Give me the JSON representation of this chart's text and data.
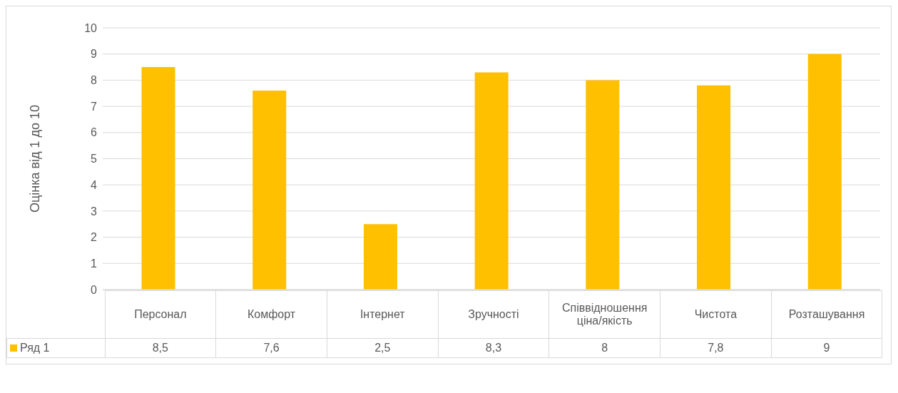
{
  "chart_data": {
    "type": "bar",
    "ylabel": "Оцінка від 1 до 10",
    "categories": [
      "Персонал",
      "Комфорт",
      "Інтернет",
      "Зручності",
      "Співвідношення ціна/якість",
      "Чистота",
      "Розташування"
    ],
    "series": [
      {
        "name": "Ряд 1",
        "color": "#ffc000",
        "values": [
          8.5,
          7.6,
          2.5,
          8.3,
          8,
          7.8,
          9
        ],
        "value_labels": [
          "8,5",
          "7,6",
          "2,5",
          "8,3",
          "8",
          "7,8",
          "9"
        ]
      }
    ],
    "ylim": [
      0,
      10
    ],
    "yticks": [
      0,
      1,
      2,
      3,
      4,
      5,
      6,
      7,
      8,
      9,
      10
    ],
    "grid": "y",
    "legend": "bottom"
  }
}
